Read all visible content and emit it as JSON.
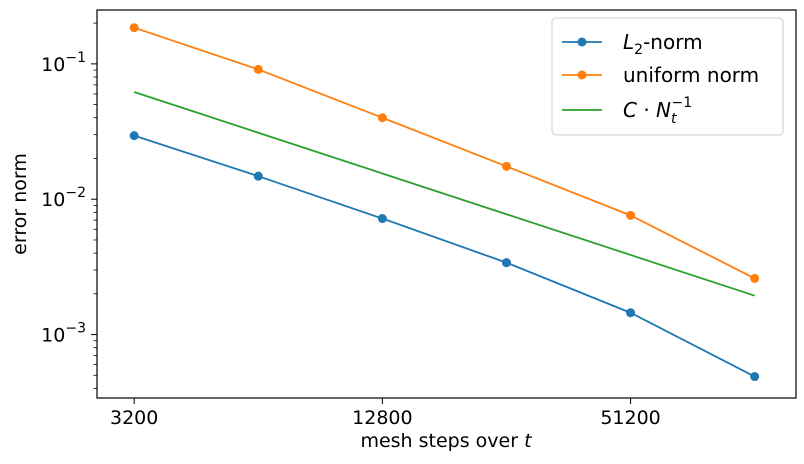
{
  "chart_data": {
    "type": "line",
    "xlabel": "mesh steps over t",
    "ylabel": "error norm",
    "x_scale": "log2",
    "y_scale": "log10",
    "xlim": [
      2600,
      129000
    ],
    "ylim": [
      0.00034,
      0.25
    ],
    "x": [
      3200,
      6400,
      12800,
      25600,
      51200,
      102400
    ],
    "x_ticks": [
      {
        "value": 3200,
        "label": "3200"
      },
      {
        "value": 12800,
        "label": "12800"
      },
      {
        "value": 51200,
        "label": "51200"
      }
    ],
    "y_ticks": [
      {
        "value": 0.1,
        "base": "10",
        "exp": "−1"
      },
      {
        "value": 0.01,
        "base": "10",
        "exp": "−2"
      },
      {
        "value": 0.001,
        "base": "10",
        "exp": "−3"
      }
    ],
    "grid": false,
    "legend_position": "top-right",
    "series": [
      {
        "name": "L2-norm",
        "label_main": "L",
        "label_sub": "2",
        "label_rest": "-norm",
        "color": "#1f77b4",
        "marker": "circle",
        "values": [
          0.0295,
          0.0148,
          0.0072,
          0.0034,
          0.00145,
          0.00049
        ]
      },
      {
        "name": "uniform norm",
        "label_main": "uniform norm",
        "color": "#ff7f0e",
        "marker": "circle",
        "values": [
          0.185,
          0.091,
          0.04,
          0.0175,
          0.0076,
          0.0026
        ]
      },
      {
        "name": "C·Nt^-1",
        "label_main": "C · N",
        "label_sub": "t",
        "label_sup": "−1",
        "color": "#2ca02c",
        "marker": "none",
        "values": [
          0.062,
          0.031,
          0.0155,
          0.00775,
          0.003875,
          0.0019375
        ]
      }
    ]
  }
}
